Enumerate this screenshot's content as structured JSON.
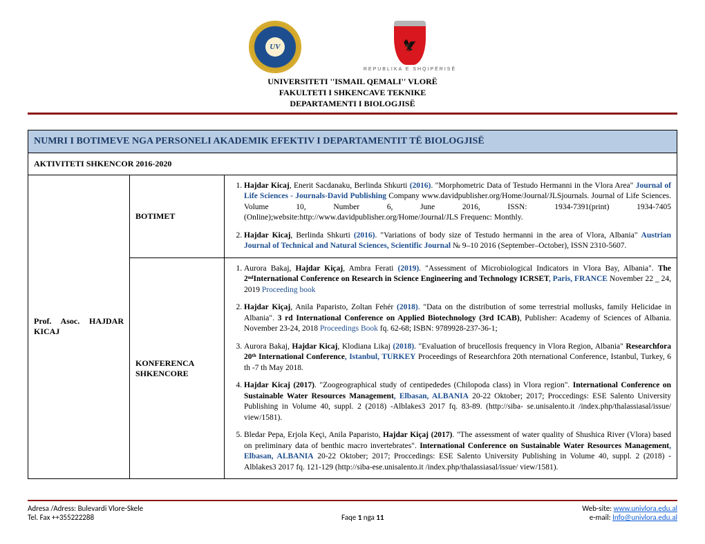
{
  "header": {
    "al_caption": "REPUBLIKA E SHQIPËRISË",
    "line1": "UNIVERSITETI ''ISMAIL QEMALI'' VLORË",
    "line2": "FAKULTETI I SHKENCAVE TEKNIKE",
    "line3": "DEPARTAMENTI I BIOLOGJISË"
  },
  "table": {
    "title": "NUMRI I BOTIMEVE NGA PERSONELI AKADEMIK EFEKTIV I DEPARTAMENTIT TË BIOLOGJISË",
    "subtitle": "AKTIVITETI SHKENCOR 2016-2020",
    "author": "Prof. Asoc. HAJDAR KICAJ",
    "section1": "BOTIMET",
    "section2": "KONFERENCA SHKENCORE",
    "botimet": [
      {
        "pre": "Hajdar Kicaj",
        "mid1": ", Enerit Sacdanaku, Berlinda Shkurti ",
        "year": "(2016)",
        "post1": ". \"Morphometric Data of Testudo Hermanni in the Vlora Area\" ",
        "journal": "Journal of Life Sciences - Journals-David Publishing",
        "post2": " Company www.davidpublisher.org/Home/Journal/JLSjournals. Journal of Life Sciences. Volume 10, Number 6, June 2016, ISSN: 1934-7391(print) 1934-7405 (Online);website:http://www.davidpublisher.org/Home/Journal/JLS Frequenc: Monthly."
      },
      {
        "pre": "Hajdar Kicaj",
        "mid1": ", Berlinda Shkurti ",
        "year": "(2016)",
        "post1": ". \"Variations of body size of Testudo hermanni in the area of Vlora, Albania\" ",
        "journal": "Austrian Journal of Technical and Natural Sciences, Scientific Journal",
        "post2": " № 9–10 2016 (September–October), ISSN 2310-5607."
      }
    ],
    "konferenca": [
      {
        "pre": "Aurora Bakaj, ",
        "author": "Hajdar Kiçaj",
        "mid": ", Ambra Ferati ",
        "year": "(2019)",
        "post1": ". \"Assessment of Microbiological Indicators in Vlora Bay, Albania\". ",
        "conf": "The 2ⁿᵈInternational Conference on Research in Science Engineering and Technology ICRSET",
        "loc": ", Paris, FRANCE",
        "post2": " November 22 _ 24, 2019 ",
        "proc": "Proceeding book"
      },
      {
        "pre": "",
        "author": "Hajdar Kiçaj",
        "mid": ", Anila Paparisto, Zoltan Fehér ",
        "year": "(2018)",
        "post1": ". \"Data on the distribution of some terrestrial mollusks, family Helicidae in Albania\". ",
        "conf": "3 rd International Conference on Applied Biotechnology (3rd ICAB)",
        "loc": "",
        "post2": ", Publisher: Academy of Sciences of Albania. November 23-24, 2018 ",
        "proc": "Proceedings Book",
        "tail": " fq. 62-68; ISBN: 9789928-237-36-1;"
      },
      {
        "pre": "Aurora Bakaj, ",
        "author": "Hajdar Kicaj",
        "mid": ", Klodiana Likaj ",
        "year": "(2018)",
        "post1": ". \"Evaluation of brucellosis frequency in Vlora Region, Albania\" ",
        "conf": "Researchfora 20ᵗʰ International Conference",
        "loc": ", Istanbul, TURKEY",
        "post2": " Proceedings of Researchfora 20th  nternational Conference, Istanbul, Turkey, 6 th -7 th May 2018."
      },
      {
        "pre": "",
        "author": "Hajdar Kicaj (2017)",
        "mid": "",
        "year": "",
        "post1": ". \"Zoogeographical study of centipededes (Chilopoda class) in Vlora region\". ",
        "conf": "International Conference on Sustainable Water Resources Management",
        "loc": ", Elbasan, ALBANIA",
        "post2": " 20-22 Oktober; 2017; Proccedings: ESE Salento University Publishing in Volume 40, suppl. 2 (2018) -Alblakes3 2017 fq. 83-89. (http://siba- se.unisalento.it /index.php/thalassiasal/issue/ view/1581)."
      },
      {
        "pre": "Bledar Pepa, Erjola Keçi, Anila Paparisto, ",
        "author": "Hajdar Kiçaj (2017)",
        "mid": "",
        "year": "",
        "post1": ". \"The assessment of water quality of Shushica River (Vlora) based on preliminary data of benthic macro invertebrates\". ",
        "conf": "International Conference on Sustainable Water Resources Management",
        "loc": ", Elbasan, ALBANIA",
        "post2": " 20-22 Oktober; 2017; Proccedings: ESE Salento University Publishing in Volume 40, suppl. 2 (2018) - Alblakes3 2017 fq. 121-129 (http://siba-ese.unisalento.it /index.php/thalassiasal/issue/ view/1581)."
      }
    ]
  },
  "footer": {
    "address": "Adresa /Adress: Bulevardi Vlore-Skele",
    "tel": "Tel. Fax ++355222288",
    "page_label": "Faqe ",
    "page_current": "1",
    "page_sep": " nga ",
    "page_total": "11",
    "web_label": "Web-site: ",
    "web": "www.univlora.edu.al",
    "email_label": "e-mail: ",
    "email": "Info@univlora.edu.al"
  }
}
